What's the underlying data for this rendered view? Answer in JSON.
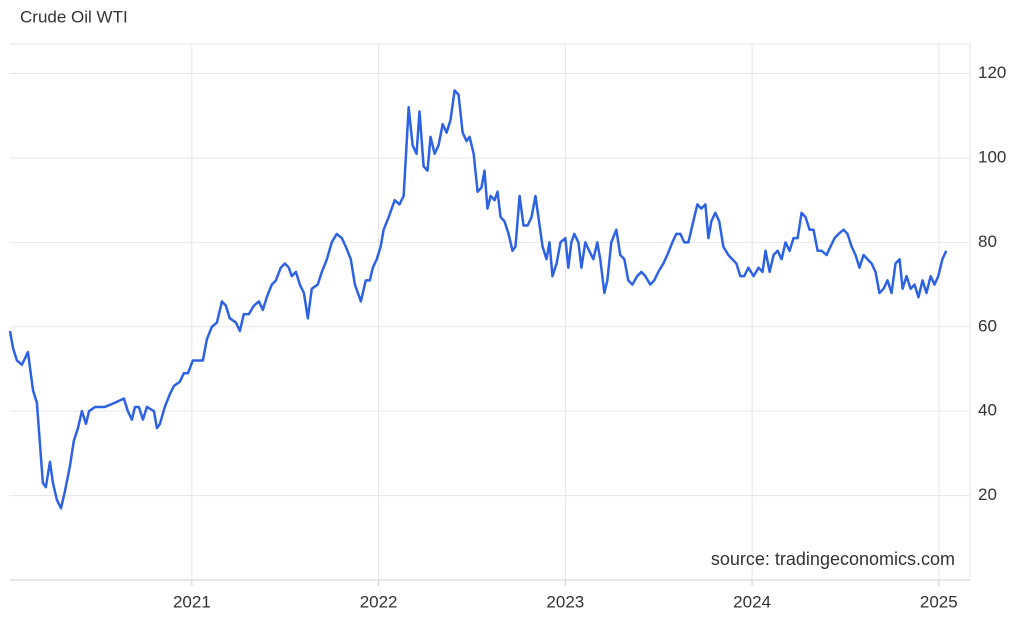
{
  "chart_data": {
    "type": "line",
    "title": "Crude Oil WTI",
    "source": "source: tradingeconomics.com",
    "xlim": [
      2020.026,
      2025.167
    ],
    "xticks": [
      2021,
      2022,
      2023,
      2024,
      2025
    ],
    "ylim": [
      0,
      127
    ],
    "yticks": [
      20,
      40,
      60,
      80,
      100,
      120
    ],
    "grid": true,
    "series": [
      {
        "name": "Crude Oil WTI",
        "color": "#2d62e3",
        "x": [
          2020.026,
          2020.042,
          2020.063,
          2020.09,
          2020.122,
          2020.149,
          2020.17,
          2020.202,
          2020.218,
          2020.24,
          2020.256,
          2020.277,
          2020.299,
          2020.32,
          2020.347,
          2020.368,
          2020.39,
          2020.411,
          2020.433,
          2020.449,
          2020.481,
          2020.534,
          2020.588,
          2020.636,
          2020.657,
          2020.679,
          2020.695,
          2020.716,
          2020.738,
          2020.759,
          2020.797,
          2020.813,
          2020.829,
          2020.855,
          2020.882,
          2020.904,
          2020.936,
          2020.957,
          2020.979,
          2021.005,
          2021.059,
          2021.08,
          2021.107,
          2021.134,
          2021.161,
          2021.182,
          2021.203,
          2021.236,
          2021.257,
          2021.278,
          2021.305,
          2021.332,
          2021.359,
          2021.38,
          2021.401,
          2021.428,
          2021.45,
          2021.476,
          2021.498,
          2021.519,
          2021.535,
          2021.557,
          2021.578,
          2021.6,
          2021.621,
          2021.642,
          2021.674,
          2021.696,
          2021.723,
          2021.749,
          2021.776,
          2021.803,
          2021.824,
          2021.851,
          2021.873,
          2021.905,
          2021.931,
          2021.953,
          2021.969,
          2021.99,
          2022.011,
          2022.027,
          2022.054,
          2022.086,
          2022.112,
          2022.134,
          2022.161,
          2022.182,
          2022.203,
          2022.219,
          2022.241,
          2022.262,
          2022.278,
          2022.3,
          2022.321,
          2022.343,
          2022.364,
          2022.385,
          2022.407,
          2022.428,
          2022.45,
          2022.471,
          2022.487,
          2022.509,
          2022.53,
          2022.551,
          2022.567,
          2022.583,
          2022.6,
          2022.621,
          2022.637,
          2022.653,
          2022.674,
          2022.696,
          2022.717,
          2022.733,
          2022.755,
          2022.776,
          2022.798,
          2022.819,
          2022.84,
          2022.862,
          2022.878,
          2022.899,
          2022.915,
          2022.931,
          2022.953,
          2022.974,
          2023,
          2023.016,
          2023.032,
          2023.048,
          2023.07,
          2023.086,
          2023.107,
          2023.128,
          2023.15,
          2023.171,
          2023.187,
          2023.209,
          2023.225,
          2023.246,
          2023.273,
          2023.294,
          2023.316,
          2023.337,
          2023.359,
          2023.385,
          2023.407,
          2023.428,
          2023.455,
          2023.476,
          2023.498,
          2023.525,
          2023.546,
          2023.573,
          2023.594,
          2023.616,
          2023.637,
          2023.659,
          2023.68,
          2023.707,
          2023.728,
          2023.75,
          2023.766,
          2023.782,
          2023.803,
          2023.824,
          2023.846,
          2023.873,
          2023.894,
          2023.916,
          2023.937,
          2023.958,
          2023.98,
          2024.008,
          2024.035,
          2024.056,
          2024.072,
          2024.094,
          2024.115,
          2024.137,
          2024.158,
          2024.179,
          2024.201,
          2024.222,
          2024.244,
          2024.265,
          2024.286,
          2024.308,
          2024.329,
          2024.351,
          2024.372,
          2024.399,
          2024.42,
          2024.442,
          2024.463,
          2024.49,
          2024.511,
          2024.533,
          2024.554,
          2024.575,
          2024.597,
          2024.618,
          2024.64,
          2024.661,
          2024.682,
          2024.704,
          2024.725,
          2024.747,
          2024.768,
          2024.79,
          2024.806,
          2024.827,
          2024.849,
          2024.87,
          2024.891,
          2024.913,
          2024.934,
          2024.956,
          2024.977,
          2024.997,
          2025.019,
          2025.04
        ],
        "values": [
          59,
          55,
          52,
          51,
          54,
          45,
          42,
          23,
          22,
          28,
          23,
          19,
          17,
          21,
          27,
          33,
          36,
          40,
          37,
          40,
          41,
          41,
          42,
          43,
          40,
          38,
          41,
          41,
          38,
          41,
          40,
          36,
          37,
          41,
          44,
          46,
          47,
          49,
          49,
          52,
          52,
          57,
          60,
          61,
          66,
          65,
          62,
          61,
          59,
          63,
          63,
          65,
          66,
          64,
          67,
          70,
          71,
          74,
          75,
          74,
          72,
          73,
          70,
          68,
          62,
          69,
          70,
          73,
          76,
          80,
          82,
          81,
          79,
          76,
          70,
          66,
          71,
          71,
          74,
          76,
          79,
          83,
          86,
          90,
          89,
          91,
          112,
          103,
          101,
          111,
          98,
          97,
          105,
          101,
          103,
          108,
          106,
          109,
          116,
          115,
          106,
          104,
          105,
          101,
          92,
          93,
          97,
          88,
          91,
          90,
          92,
          86,
          85,
          82,
          78,
          79,
          91,
          84,
          84,
          86,
          91,
          84,
          79,
          76,
          80,
          72,
          75,
          80,
          81,
          74,
          80,
          82,
          80,
          74,
          80,
          78,
          76,
          80,
          76,
          68,
          71,
          80,
          83,
          77,
          76,
          71,
          70,
          72,
          73,
          72,
          70,
          71,
          73,
          75,
          77,
          80,
          82,
          82,
          80,
          80,
          84,
          89,
          88,
          89,
          81,
          85,
          87,
          85,
          79,
          77,
          76,
          75,
          72,
          72,
          74,
          72,
          74,
          73,
          78,
          73,
          77,
          78,
          76,
          80,
          78,
          81,
          81,
          87,
          86,
          83,
          83,
          78,
          78,
          77,
          79,
          81,
          82,
          83,
          82,
          79,
          77,
          74,
          77,
          76,
          75,
          73,
          68,
          69,
          71,
          68,
          75,
          76,
          69,
          72,
          69,
          70,
          67,
          71,
          68,
          72,
          70,
          72,
          76,
          78
        ]
      }
    ]
  }
}
